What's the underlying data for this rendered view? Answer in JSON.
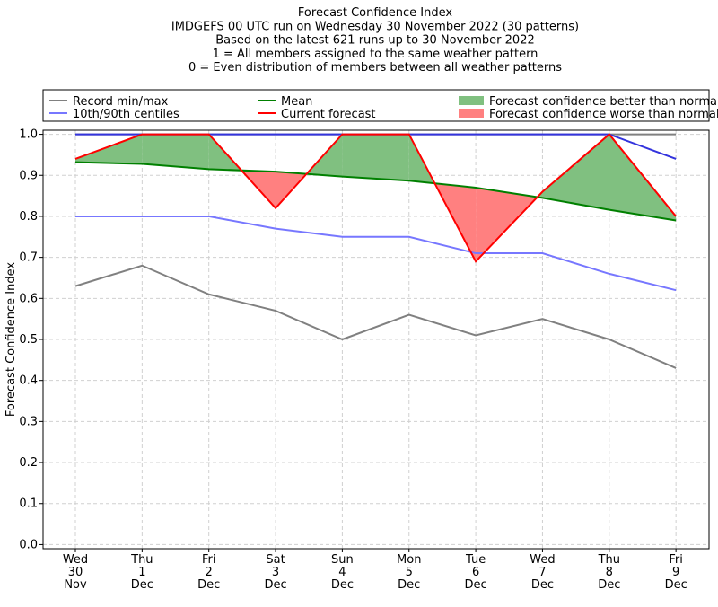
{
  "chart_data": {
    "type": "line",
    "title_lines": [
      "Forecast Confidence Index",
      "IMDGEFS 00 UTC run on Wednesday 30 November 2022 (30 patterns)",
      "Based on the latest 621 runs up to 30 November 2022",
      "1 = All members assigned to the same weather pattern",
      "0 = Even distribution of members between all weather patterns"
    ],
    "ylabel": "Forecast Confidence Index",
    "xlabel": "",
    "ylim": [
      -0.01,
      1.01
    ],
    "yticks": [
      "0.0",
      "0.1",
      "0.2",
      "0.3",
      "0.4",
      "0.5",
      "0.6",
      "0.7",
      "0.8",
      "0.9",
      "1.0"
    ],
    "grid": true,
    "legend_position": "top, above plot",
    "categories": [
      [
        "Wed",
        "30",
        "Nov"
      ],
      [
        "Thu",
        "1",
        "Dec"
      ],
      [
        "Fri",
        "2",
        "Dec"
      ],
      [
        "Sat",
        "3",
        "Dec"
      ],
      [
        "Sun",
        "4",
        "Dec"
      ],
      [
        "Mon",
        "5",
        "Dec"
      ],
      [
        "Tue",
        "6",
        "Dec"
      ],
      [
        "Wed",
        "7",
        "Dec"
      ],
      [
        "Thu",
        "8",
        "Dec"
      ],
      [
        "Fri",
        "9",
        "Dec"
      ]
    ],
    "series": [
      {
        "name": "Record min/max",
        "key": "min",
        "color": "#808080",
        "values": [
          0.63,
          0.68,
          0.61,
          0.57,
          0.5,
          0.56,
          0.51,
          0.55,
          0.5,
          0.43
        ]
      },
      {
        "name": "Record min/max",
        "key": "max",
        "color": "#808080",
        "values": [
          1.0,
          1.0,
          1.0,
          1.0,
          1.0,
          1.0,
          1.0,
          1.0,
          1.0,
          1.0
        ]
      },
      {
        "name": "10th/90th centiles",
        "key": "p10",
        "color": "#7777ff",
        "values": [
          0.8,
          0.8,
          0.8,
          0.77,
          0.75,
          0.75,
          0.71,
          0.71,
          0.66,
          0.62
        ]
      },
      {
        "name": "10th/90th centiles",
        "key": "p90",
        "color": "#3333dd",
        "values": [
          1.0,
          1.0,
          1.0,
          1.0,
          1.0,
          1.0,
          1.0,
          1.0,
          1.0,
          0.94
        ]
      },
      {
        "name": "Mean",
        "key": "mean",
        "color": "#008000",
        "values": [
          0.932,
          0.928,
          0.915,
          0.909,
          0.897,
          0.887,
          0.87,
          0.845,
          0.816,
          0.79
        ]
      },
      {
        "name": "Current forecast",
        "key": "current",
        "color": "#ff0000",
        "values": [
          0.94,
          1.0,
          1.0,
          0.82,
          1.0,
          1.0,
          0.69,
          0.86,
          1.0,
          0.8
        ]
      }
    ],
    "fills": {
      "better": {
        "label": "Forecast confidence better than normal",
        "color": "#80c080"
      },
      "worse": {
        "label": "Forecast confidence worse than normal",
        "color": "#ff8080"
      }
    },
    "legend": [
      {
        "label": "Record min/max",
        "color": "#808080",
        "kind": "line"
      },
      {
        "label": "10th/90th centiles",
        "color": "#7777ff",
        "kind": "line"
      },
      {
        "label": "Mean",
        "color": "#008000",
        "kind": "line"
      },
      {
        "label": "Current forecast",
        "color": "#ff0000",
        "kind": "line"
      },
      {
        "label": "Forecast confidence better than normal",
        "color": "#80c080",
        "kind": "patch"
      },
      {
        "label": "Forecast confidence worse than normal",
        "color": "#ff8080",
        "kind": "patch"
      }
    ]
  }
}
